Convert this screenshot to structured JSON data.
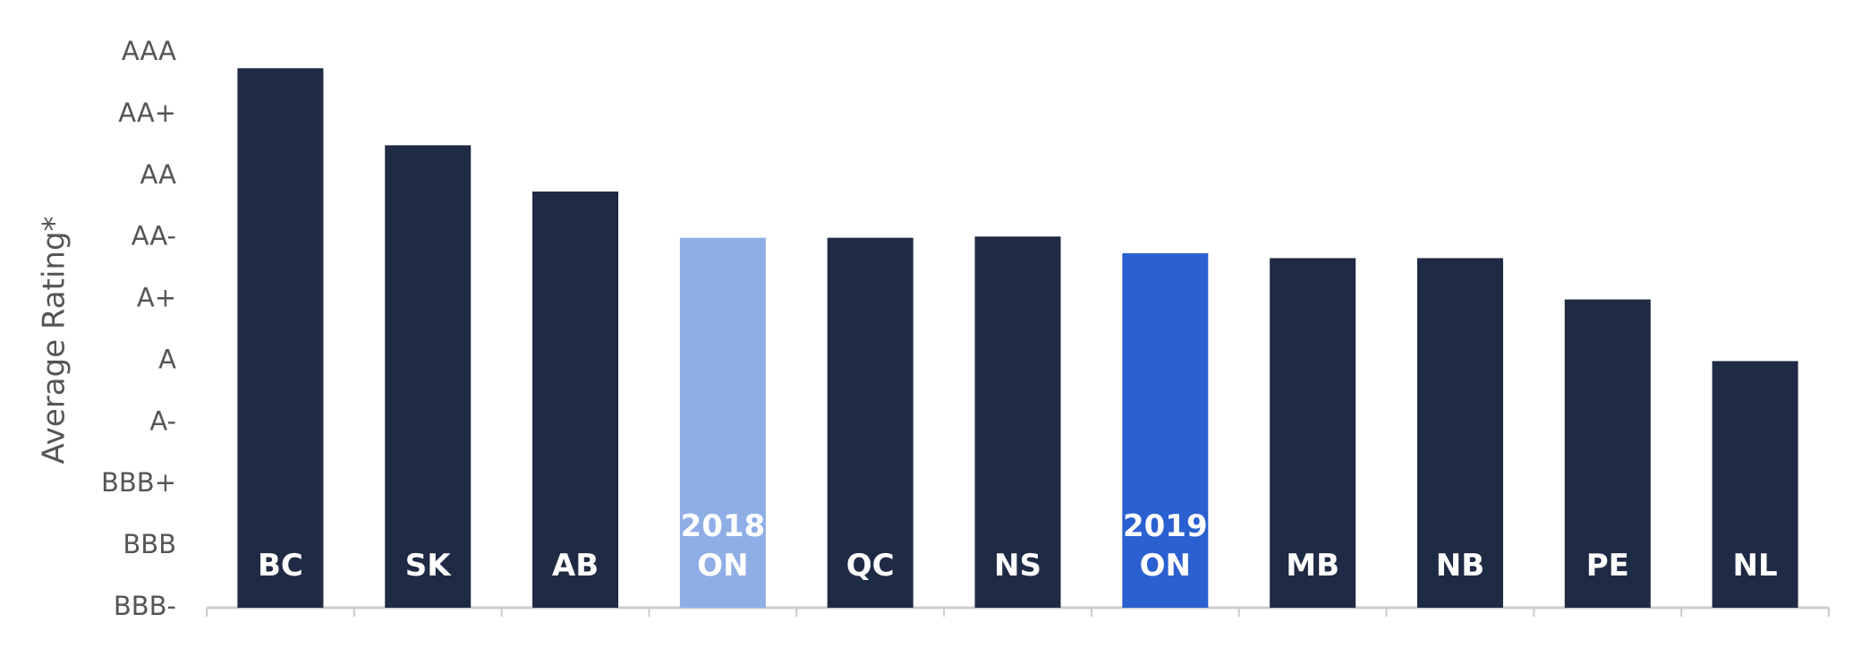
{
  "chart_data": {
    "type": "bar",
    "y_label": "Average Rating*",
    "categories": [
      "BC",
      "SK",
      "AB",
      "2018 ON",
      "QC",
      "NS",
      "2019 ON",
      "MB",
      "NB",
      "PE",
      "NL"
    ],
    "values": [
      8.75,
      7.5,
      6.75,
      6.0,
      6.0,
      6.02,
      5.75,
      5.67,
      5.67,
      5.0,
      4.0
    ],
    "colors": [
      "#1f2a44",
      "#1f2a44",
      "#1f2a44",
      "#8faee6",
      "#1f2a44",
      "#1f2a44",
      "#2b60d0",
      "#1f2a44",
      "#1f2a44",
      "#1f2a44",
      "#1f2a44"
    ],
    "ylim": [
      0,
      9
    ],
    "yticks": [
      {
        "value": 0,
        "label": "BBB-"
      },
      {
        "value": 1,
        "label": "BBB"
      },
      {
        "value": 2,
        "label": "BBB+"
      },
      {
        "value": 3,
        "label": "A-"
      },
      {
        "value": 4,
        "label": "A"
      },
      {
        "value": 5,
        "label": "A+"
      },
      {
        "value": 6,
        "label": "AA-"
      },
      {
        "value": 7,
        "label": "AA"
      },
      {
        "value": 8,
        "label": "AA+"
      },
      {
        "value": 9,
        "label": "AAA"
      }
    ],
    "grid": false
  }
}
